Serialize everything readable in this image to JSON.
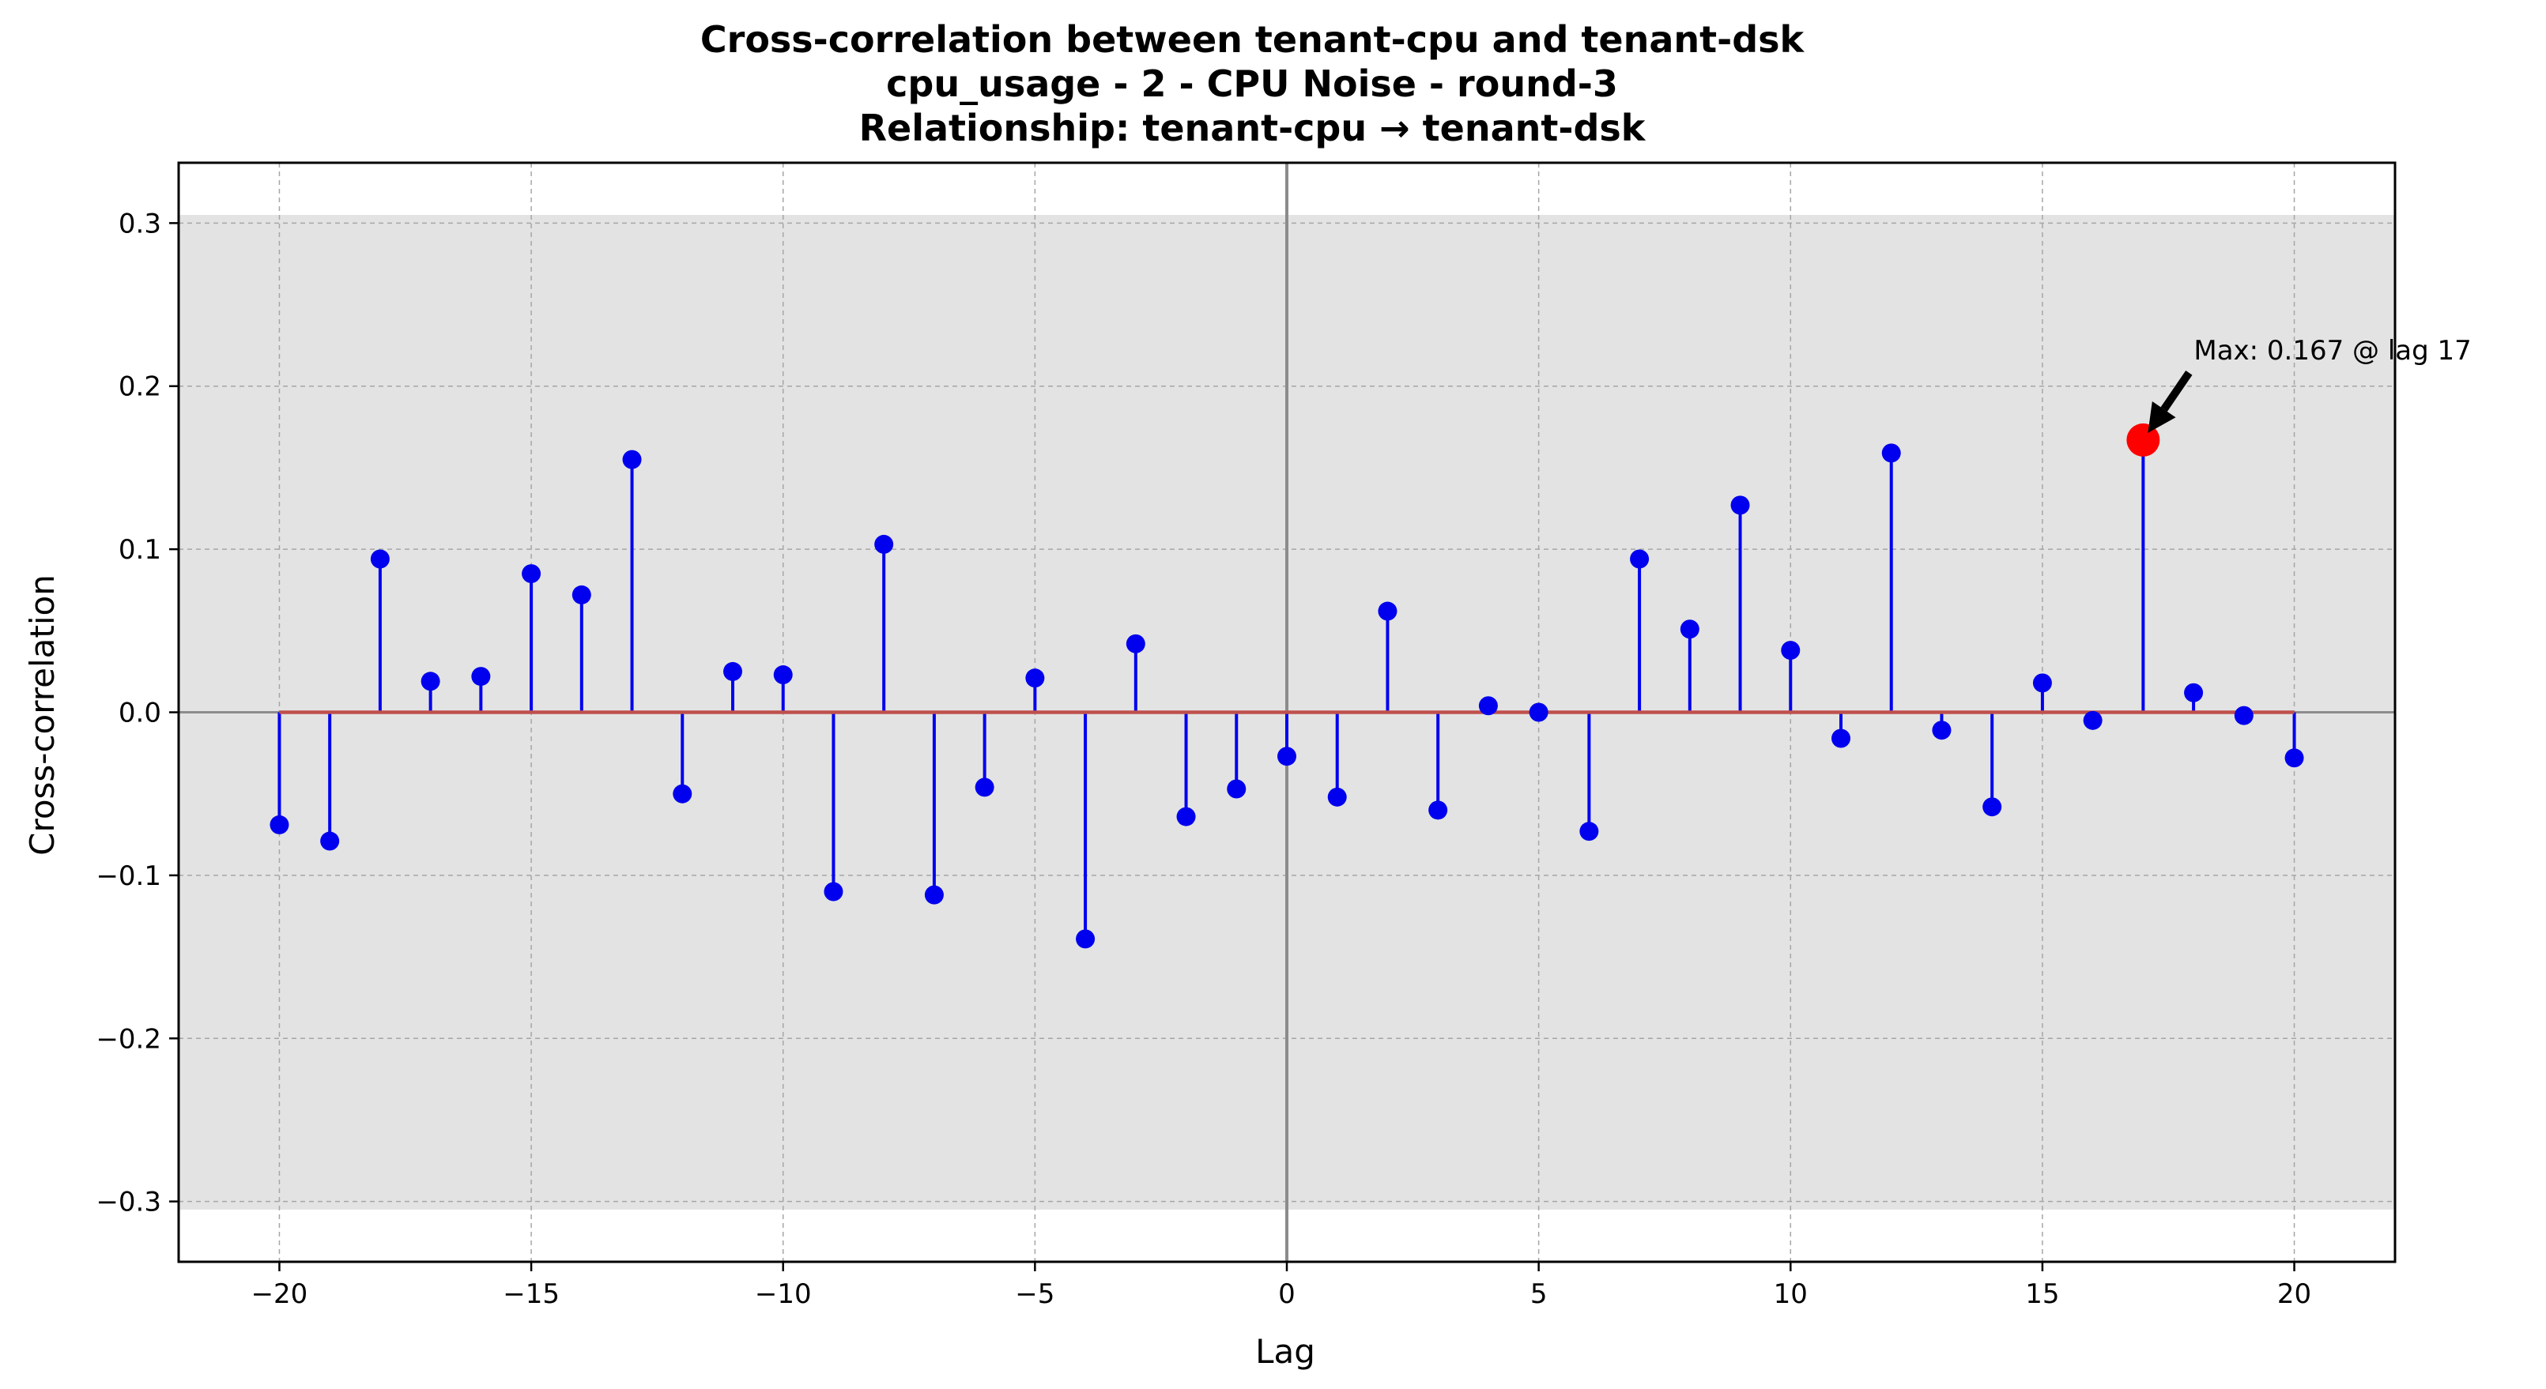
{
  "chart_data": {
    "type": "stem",
    "title_lines": [
      "Cross-correlation between tenant-cpu and tenant-dsk",
      "cpu_usage - 2 - CPU Noise - round-3",
      "Relationship: tenant-cpu → tenant-dsk"
    ],
    "xlabel": "Lag",
    "ylabel": "Cross-correlation",
    "xlim": [
      -22,
      22
    ],
    "ylim": [
      -0.337,
      0.337
    ],
    "x_ticks": [
      -20,
      -15,
      -10,
      -5,
      0,
      5,
      10,
      15,
      20
    ],
    "x_tick_labels": [
      "−20",
      "−15",
      "−10",
      "−5",
      "0",
      "5",
      "10",
      "15",
      "20"
    ],
    "y_ticks": [
      -0.3,
      -0.2,
      -0.1,
      0.0,
      0.1,
      0.2,
      0.3
    ],
    "y_tick_labels": [
      "−0.3",
      "−0.2",
      "−0.1",
      "0.0",
      "0.1",
      "0.2",
      "0.3"
    ],
    "grid": true,
    "confidence_band": [
      -0.305,
      0.305
    ],
    "x": [
      -20,
      -19,
      -18,
      -17,
      -16,
      -15,
      -14,
      -13,
      -12,
      -11,
      -10,
      -9,
      -8,
      -7,
      -6,
      -5,
      -4,
      -3,
      -2,
      -1,
      0,
      1,
      2,
      3,
      4,
      5,
      6,
      7,
      8,
      9,
      10,
      11,
      12,
      13,
      14,
      15,
      16,
      17,
      18,
      19,
      20
    ],
    "y": [
      -0.069,
      -0.079,
      0.094,
      0.019,
      0.022,
      0.085,
      0.072,
      0.155,
      -0.05,
      0.025,
      0.023,
      -0.11,
      0.103,
      -0.112,
      -0.046,
      0.021,
      -0.139,
      0.042,
      -0.064,
      -0.047,
      -0.027,
      -0.052,
      0.062,
      -0.06,
      0.004,
      0.0,
      -0.073,
      0.094,
      0.051,
      0.127,
      0.038,
      -0.016,
      0.159,
      -0.011,
      -0.058,
      0.018,
      -0.005,
      0.167,
      0.012,
      -0.002,
      -0.028
    ],
    "max_point": {
      "lag": 17,
      "value": 0.167
    },
    "annotation": "Max: 0.167 @ lag 17",
    "colors": {
      "stem": "#0000ee",
      "marker": "#0000ee",
      "baseline": "#c0504d",
      "max_marker": "#ff0000",
      "band": "#e3e3e3",
      "grid": "#a6a6a6",
      "zero_line": "#8c8c8c"
    }
  }
}
